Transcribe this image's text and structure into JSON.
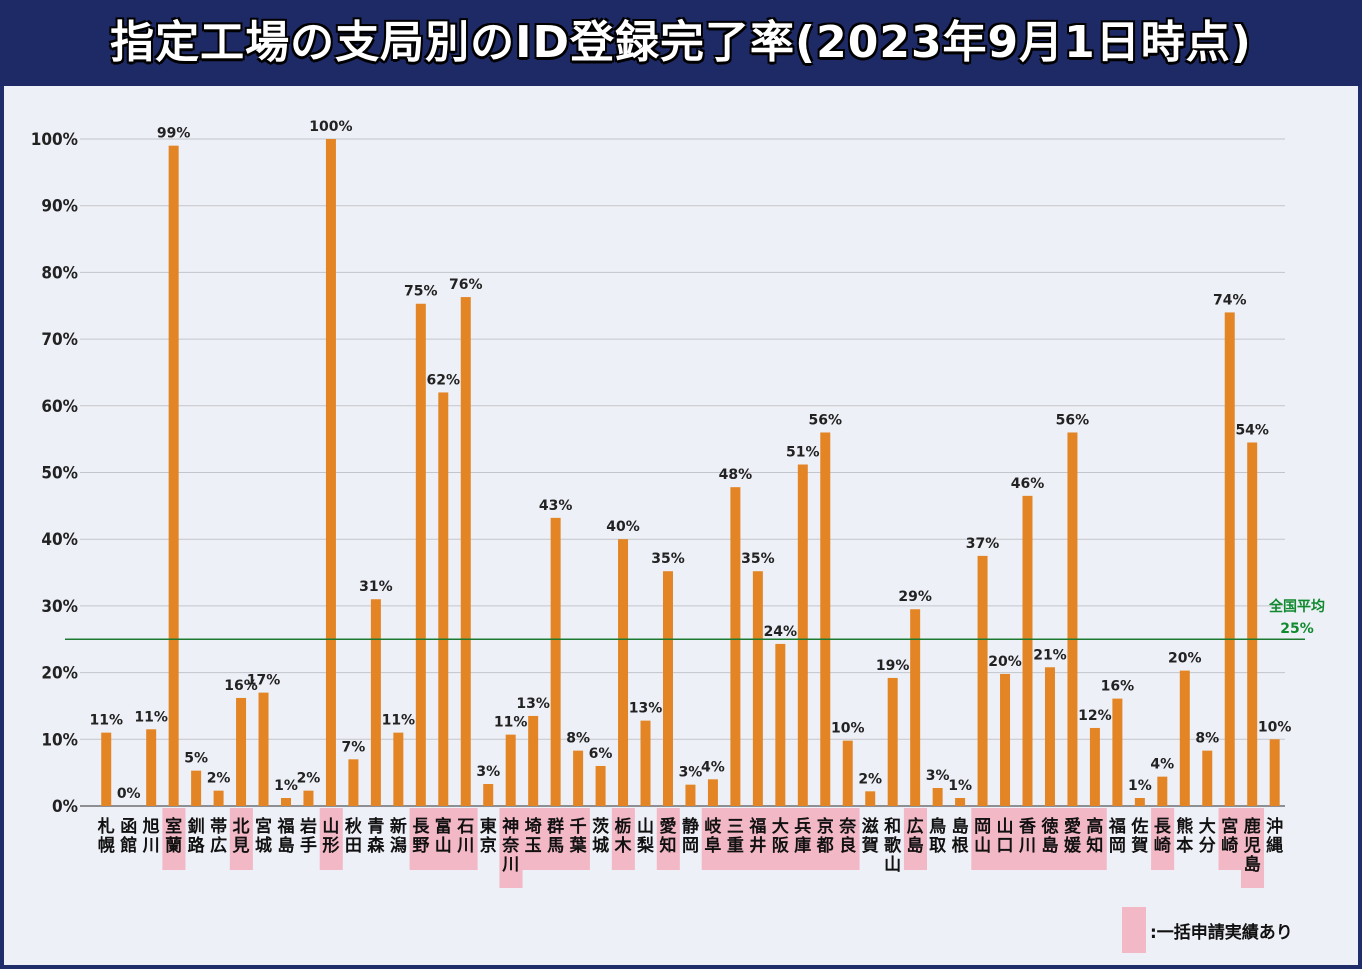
{
  "title": "指定工場の支局別のID登録完了率(2023年9月1日時点)",
  "colors": {
    "bar": "#e38524",
    "highlight": "#f2b8c6",
    "avg_line": "#1b7a30",
    "header": "#1e2a66"
  },
  "chart_data": {
    "type": "bar",
    "ylim": [
      0,
      100
    ],
    "yticks": [
      "0%",
      "10%",
      "20%",
      "30%",
      "40%",
      "50%",
      "60%",
      "70%",
      "80%",
      "90%",
      "100%"
    ],
    "grid": true,
    "categories": [
      "札幌",
      "函館",
      "旭川",
      "室蘭",
      "釧路",
      "帯広",
      "北見",
      "宮城",
      "福島",
      "岩手",
      "山形",
      "秋田",
      "青森",
      "新潟",
      "長野",
      "富山",
      "石川",
      "東京",
      "神奈川",
      "埼玉",
      "群馬",
      "千葉",
      "茨城",
      "栃木",
      "山梨",
      "愛知",
      "静岡",
      "岐阜",
      "三重",
      "福井",
      "大阪",
      "兵庫",
      "京都",
      "奈良",
      "滋賀",
      "和歌山",
      "広島",
      "鳥取",
      "島根",
      "岡山",
      "山口",
      "香川",
      "徳島",
      "愛媛",
      "高知",
      "福岡",
      "佐賀",
      "長崎",
      "熊本",
      "大分",
      "宮崎",
      "鹿児島",
      "沖縄"
    ],
    "values": [
      11,
      0,
      11.5,
      99,
      5.3,
      2.3,
      16.2,
      17,
      1.2,
      2.3,
      100,
      7,
      31,
      11,
      75.3,
      62,
      76.3,
      3.3,
      10.7,
      13.5,
      43.2,
      8.3,
      6,
      40,
      12.8,
      35.2,
      3.2,
      4,
      47.8,
      35.2,
      24.3,
      51.2,
      56,
      9.8,
      2.2,
      19.2,
      29.5,
      2.7,
      1.2,
      37.5,
      19.8,
      46.5,
      20.8,
      56,
      11.7,
      16.1,
      1.2,
      4.4,
      20.3,
      8.3,
      74,
      54.5,
      10
    ],
    "labels": [
      "11%",
      "0%",
      "11%",
      "99%",
      "5%",
      "2%",
      "16%",
      "17%",
      "1%",
      "2%",
      "100%",
      "7%",
      "31%",
      "11%",
      "75%",
      "62%",
      "76%",
      "3%",
      "11%",
      "13%",
      "43%",
      "8%",
      "6%",
      "40%",
      "13%",
      "35%",
      "3%",
      "4%",
      "48%",
      "35%",
      "24%",
      "51%",
      "56%",
      "10%",
      "2%",
      "19%",
      "29%",
      "3%",
      "1%",
      "37%",
      "20%",
      "46%",
      "21%",
      "56%",
      "12%",
      "16%",
      "1%",
      "4%",
      "20%",
      "8%",
      "74%",
      "54%",
      "10%"
    ],
    "highlighted": [
      "室蘭",
      "北見",
      "山形",
      "長野",
      "富山",
      "石川",
      "神奈川",
      "埼玉",
      "群馬",
      "千葉",
      "栃木",
      "愛知",
      "岐阜",
      "三重",
      "福井",
      "大阪",
      "兵庫",
      "京都",
      "奈良",
      "広島",
      "岡山",
      "山口",
      "香川",
      "徳島",
      "愛媛",
      "高知",
      "長崎",
      "宮崎",
      "鹿児島"
    ],
    "average": {
      "label": "全国平均",
      "value": 25,
      "value_label": "25%"
    },
    "legend": {
      "label": ":一括申請実績あり"
    }
  }
}
